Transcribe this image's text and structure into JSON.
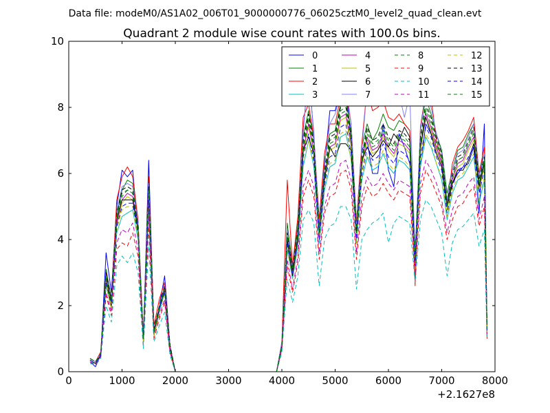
{
  "figure": {
    "suptitle": "Data file: modeM0/AS1A02_006T01_9000000776_06025cztM0_level2_quad_clean.evt",
    "offset_label": "+2.1627e8"
  },
  "chart_data": {
    "type": "line",
    "title": "Quadrant 2 module wise count rates with 100.0s bins.",
    "xlabel": "",
    "ylabel": "",
    "xlim": [
      0,
      8000
    ],
    "ylim": [
      0,
      10
    ],
    "x_offset": "+2.1627e8",
    "xticks": [
      0,
      1000,
      2000,
      3000,
      4000,
      5000,
      6000,
      7000,
      8000
    ],
    "yticks": [
      0,
      2,
      4,
      6,
      8,
      10
    ],
    "grid": false,
    "legend": {
      "placement": "top-right",
      "columns": 4
    },
    "x": [
      400,
      500,
      600,
      700,
      800,
      900,
      1000,
      1100,
      1200,
      1300,
      1400,
      1500,
      1600,
      1700,
      1800,
      1900,
      2000,
      2100,
      3900,
      4000,
      4100,
      4200,
      4300,
      4400,
      4500,
      4600,
      4700,
      4800,
      4900,
      5000,
      5100,
      5200,
      5300,
      5400,
      5500,
      5600,
      5700,
      5800,
      5900,
      6000,
      6100,
      6200,
      6300,
      6400,
      6500,
      6600,
      6700,
      6800,
      6900,
      7000,
      7100,
      7200,
      7300,
      7400,
      7500,
      7600,
      7700,
      7800,
      7850
    ],
    "series": [
      {
        "name": "0",
        "color": "#0000ff",
        "dash": "solid",
        "values": [
          0.3,
          0.15,
          0.5,
          3.6,
          2.4,
          5.0,
          6.1,
          5.9,
          6.1,
          4.2,
          1.0,
          6.4,
          1.2,
          2.0,
          2.9,
          0.8,
          0.0,
          0.0,
          0.0,
          0.8,
          4.0,
          3.0,
          4.0,
          7.3,
          9.1,
          7.2,
          4.2,
          6.2,
          7.9,
          7.9,
          8.5,
          8.6,
          7.0,
          4.4,
          6.7,
          7.0,
          6.0,
          6.0,
          7.5,
          6.1,
          5.6,
          7.2,
          6.8,
          6.3,
          3.8,
          6.2,
          7.5,
          7.2,
          6.8,
          6.3,
          5.2,
          5.7,
          6.0,
          6.2,
          6.3,
          6.8,
          4.8,
          7.5,
          1.3
        ]
      },
      {
        "name": "1",
        "color": "#008000",
        "dash": "solid",
        "values": [
          0.4,
          0.3,
          0.55,
          3.1,
          2.2,
          4.7,
          5.5,
          5.8,
          5.7,
          4.5,
          1.1,
          5.8,
          1.3,
          2.0,
          2.6,
          0.8,
          0.0,
          0.0,
          0.0,
          0.8,
          4.5,
          3.2,
          4.5,
          7.1,
          7.9,
          7.0,
          4.6,
          6.4,
          7.2,
          7.3,
          8.1,
          8.2,
          7.3,
          4.5,
          6.8,
          7.5,
          7.0,
          7.3,
          7.8,
          7.4,
          7.3,
          7.6,
          7.5,
          7.3,
          3.5,
          7.3,
          8.3,
          7.8,
          7.2,
          6.7,
          5.4,
          6.1,
          6.7,
          6.8,
          7.2,
          7.5,
          6.0,
          6.6,
          1.4
        ]
      },
      {
        "name": "2",
        "color": "#ff0000",
        "dash": "solid",
        "values": [
          0.4,
          0.3,
          0.6,
          3.0,
          2.2,
          5.2,
          5.9,
          6.2,
          5.9,
          4.6,
          1.1,
          5.9,
          1.4,
          2.2,
          2.7,
          0.8,
          0.0,
          0.0,
          0.0,
          0.9,
          5.8,
          3.2,
          4.7,
          7.7,
          8.1,
          7.1,
          4.6,
          6.6,
          7.5,
          7.5,
          8.3,
          8.5,
          7.5,
          4.5,
          6.9,
          8.6,
          7.9,
          8.0,
          8.2,
          7.7,
          7.6,
          7.8,
          7.5,
          7.3,
          2.6,
          7.4,
          8.5,
          8.3,
          7.0,
          6.4,
          5.0,
          6.3,
          6.8,
          7.0,
          7.3,
          7.7,
          6.0,
          6.8,
          1.0
        ]
      },
      {
        "name": "3",
        "color": "#00bfbf",
        "dash": "solid",
        "values": [
          0.3,
          0.25,
          0.45,
          2.6,
          1.9,
          4.2,
          4.7,
          4.8,
          4.9,
          4.0,
          0.9,
          5.0,
          1.1,
          1.8,
          2.4,
          0.7,
          0.0,
          0.0,
          0.0,
          0.7,
          3.7,
          2.8,
          3.8,
          6.2,
          7.0,
          6.2,
          3.9,
          5.5,
          6.2,
          6.3,
          7.1,
          7.2,
          6.4,
          3.9,
          5.8,
          6.5,
          6.1,
          6.2,
          6.6,
          6.2,
          6.0,
          6.4,
          6.3,
          6.1,
          3.1,
          6.2,
          7.1,
          6.8,
          6.3,
          5.8,
          4.6,
          5.4,
          5.8,
          5.9,
          6.2,
          6.5,
          5.1,
          5.8,
          1.2
        ]
      },
      {
        "name": "4",
        "color": "#bf00bf",
        "dash": "solid",
        "values": [
          0.35,
          0.25,
          0.5,
          2.8,
          2.0,
          4.5,
          5.2,
          5.4,
          5.3,
          4.3,
          1.0,
          5.4,
          1.2,
          1.9,
          2.5,
          0.7,
          0.0,
          0.0,
          0.0,
          0.8,
          4.1,
          3.0,
          4.2,
          6.7,
          7.5,
          6.7,
          4.2,
          5.9,
          6.8,
          6.9,
          7.7,
          7.8,
          6.9,
          4.2,
          6.3,
          7.1,
          6.7,
          6.8,
          7.2,
          6.8,
          6.6,
          7.0,
          6.9,
          6.7,
          3.3,
          6.8,
          7.8,
          7.4,
          6.8,
          6.3,
          5.0,
          5.8,
          6.3,
          6.4,
          6.8,
          7.1,
          5.6,
          6.3,
          1.3
        ]
      },
      {
        "name": "5",
        "color": "#bfbf00",
        "dash": "solid",
        "values": [
          0.35,
          0.25,
          0.5,
          2.7,
          2.0,
          4.4,
          5.1,
          5.3,
          5.2,
          4.2,
          1.0,
          5.3,
          1.2,
          1.9,
          2.5,
          0.7,
          0.0,
          0.0,
          0.0,
          0.8,
          4.0,
          2.9,
          4.1,
          6.6,
          7.4,
          6.6,
          4.1,
          5.8,
          6.7,
          6.8,
          7.6,
          7.7,
          6.8,
          4.1,
          6.2,
          7.0,
          6.6,
          6.7,
          7.1,
          6.7,
          6.5,
          6.9,
          6.8,
          6.6,
          3.2,
          6.7,
          7.7,
          7.3,
          6.7,
          6.2,
          4.9,
          5.7,
          6.2,
          6.3,
          6.7,
          7.0,
          5.5,
          6.2,
          1.3
        ]
      },
      {
        "name": "6",
        "color": "#000000",
        "dash": "solid",
        "values": [
          0.35,
          0.25,
          0.5,
          2.9,
          2.1,
          4.6,
          5.2,
          5.2,
          5.2,
          4.3,
          1.0,
          5.4,
          1.2,
          1.9,
          2.5,
          0.7,
          0.0,
          0.0,
          0.0,
          0.8,
          4.0,
          2.9,
          4.0,
          6.7,
          7.1,
          6.6,
          4.3,
          5.8,
          6.8,
          6.5,
          6.9,
          6.9,
          6.7,
          4.3,
          6.4,
          6.8,
          6.5,
          6.7,
          7.0,
          6.8,
          7.2,
          7.0,
          7.4,
          7.1,
          3.4,
          6.8,
          7.7,
          7.2,
          6.6,
          6.2,
          5.0,
          5.7,
          6.1,
          6.1,
          6.4,
          6.9,
          5.6,
          6.3,
          1.3
        ]
      },
      {
        "name": "7",
        "color": "#7f7fff",
        "dash": "solid",
        "values": [
          0.4,
          0.3,
          0.55,
          2.9,
          2.2,
          4.8,
          5.6,
          5.7,
          5.6,
          4.5,
          1.1,
          5.7,
          1.3,
          2.0,
          2.6,
          0.8,
          0.0,
          0.0,
          0.0,
          0.9,
          4.3,
          3.1,
          4.3,
          7.2,
          9.2,
          7.1,
          4.4,
          6.3,
          7.5,
          7.8,
          8.4,
          8.7,
          7.5,
          4.4,
          6.7,
          8.6,
          8.5,
          8.2,
          8.2,
          8.3,
          8.3,
          8.4,
          7.7,
          8.4,
          3.6,
          7.3,
          8.5,
          8.0,
          7.2,
          6.6,
          5.2,
          6.1,
          6.6,
          6.7,
          7.1,
          7.5,
          5.9,
          6.6,
          1.4
        ]
      },
      {
        "name": "8",
        "color": "#008000",
        "dash": "dashed",
        "values": [
          0.35,
          0.25,
          0.5,
          2.8,
          2.0,
          4.6,
          5.3,
          5.5,
          5.4,
          4.3,
          1.0,
          5.5,
          1.2,
          1.9,
          2.5,
          0.7,
          0.0,
          0.0,
          0.0,
          0.8,
          4.1,
          3.0,
          4.2,
          6.8,
          7.6,
          6.7,
          4.2,
          5.9,
          6.9,
          7.0,
          7.8,
          7.9,
          7.0,
          4.2,
          6.3,
          7.2,
          6.8,
          6.9,
          7.3,
          6.9,
          6.7,
          7.1,
          7.0,
          6.8,
          3.3,
          6.9,
          7.9,
          7.5,
          6.9,
          6.4,
          5.0,
          5.9,
          6.4,
          6.5,
          6.9,
          7.2,
          5.7,
          6.4,
          1.3
        ]
      },
      {
        "name": "9",
        "color": "#ff0000",
        "dash": "dashed",
        "values": [
          0.3,
          0.2,
          0.45,
          2.3,
          1.7,
          3.7,
          3.9,
          3.8,
          4.2,
          3.5,
          0.8,
          4.4,
          1.0,
          1.6,
          2.1,
          0.6,
          0.0,
          0.0,
          0.0,
          0.7,
          3.2,
          2.4,
          3.3,
          5.3,
          5.8,
          5.3,
          3.4,
          4.8,
          5.3,
          5.4,
          6.0,
          6.1,
          5.5,
          3.4,
          5.0,
          5.6,
          5.3,
          5.4,
          5.7,
          5.4,
          5.2,
          5.5,
          5.4,
          5.3,
          2.8,
          5.4,
          6.1,
          5.8,
          5.4,
          5.0,
          4.0,
          4.6,
          5.0,
          5.1,
          5.4,
          5.6,
          4.4,
          5.0,
          1.1
        ]
      },
      {
        "name": "10",
        "color": "#00bfbf",
        "dash": "dashed",
        "values": [
          0.25,
          0.2,
          0.4,
          2.0,
          1.5,
          3.2,
          3.5,
          3.3,
          3.6,
          3.0,
          0.7,
          3.8,
          0.9,
          1.4,
          1.8,
          0.5,
          0.0,
          0.0,
          0.0,
          0.6,
          2.8,
          2.1,
          2.9,
          4.6,
          4.9,
          4.5,
          2.6,
          4.0,
          4.4,
          4.5,
          5.0,
          5.0,
          4.6,
          2.5,
          4.0,
          4.3,
          4.5,
          4.6,
          4.8,
          3.9,
          4.5,
          4.7,
          4.6,
          4.5,
          2.7,
          4.6,
          5.2,
          5.0,
          4.6,
          4.2,
          2.9,
          3.9,
          4.3,
          4.4,
          4.6,
          4.8,
          3.8,
          4.3,
          1.0
        ]
      },
      {
        "name": "11",
        "color": "#bf00bf",
        "dash": "dashed",
        "values": [
          0.3,
          0.2,
          0.45,
          2.4,
          1.8,
          3.9,
          4.3,
          4.2,
          4.5,
          3.7,
          0.9,
          4.7,
          1.1,
          1.7,
          2.2,
          0.6,
          0.0,
          0.0,
          0.0,
          0.7,
          3.4,
          2.5,
          3.5,
          5.6,
          6.1,
          5.6,
          3.6,
          5.0,
          5.6,
          5.7,
          6.3,
          6.4,
          5.8,
          3.6,
          5.3,
          5.9,
          5.6,
          5.7,
          6.0,
          5.7,
          5.5,
          5.8,
          5.7,
          5.6,
          3.0,
          5.7,
          6.4,
          6.1,
          5.7,
          5.2,
          4.2,
          4.9,
          5.3,
          5.4,
          5.7,
          5.9,
          4.6,
          5.3,
          1.1
        ]
      },
      {
        "name": "12",
        "color": "#bfbf00",
        "dash": "dashed",
        "values": [
          0.35,
          0.25,
          0.5,
          2.6,
          1.9,
          4.3,
          4.9,
          5.0,
          5.0,
          4.1,
          0.9,
          5.1,
          1.1,
          1.8,
          2.4,
          0.7,
          0.0,
          0.0,
          0.0,
          0.8,
          3.8,
          2.8,
          3.9,
          6.3,
          7.0,
          6.3,
          4.0,
          5.6,
          6.3,
          6.4,
          7.2,
          7.3,
          6.4,
          3.9,
          5.9,
          6.6,
          6.2,
          6.3,
          6.7,
          6.3,
          6.1,
          6.5,
          6.4,
          6.2,
          3.1,
          6.3,
          7.2,
          6.9,
          6.3,
          5.9,
          4.7,
          5.5,
          5.9,
          6.0,
          6.3,
          6.6,
          5.2,
          5.9,
          1.2
        ]
      },
      {
        "name": "13",
        "color": "#000000",
        "dash": "dashed",
        "values": [
          0.4,
          0.3,
          0.55,
          3.0,
          2.2,
          4.8,
          5.5,
          5.6,
          5.5,
          4.4,
          1.0,
          5.6,
          1.3,
          2.0,
          2.6,
          0.8,
          0.0,
          0.0,
          0.0,
          0.8,
          4.2,
          3.1,
          4.3,
          7.0,
          7.8,
          6.9,
          4.3,
          6.1,
          7.1,
          7.2,
          8.0,
          8.1,
          7.2,
          4.3,
          6.5,
          7.4,
          7.0,
          7.1,
          7.5,
          7.1,
          6.9,
          7.3,
          7.2,
          7.0,
          3.4,
          7.1,
          8.1,
          7.7,
          7.1,
          6.6,
          5.1,
          6.0,
          6.5,
          6.6,
          7.0,
          7.4,
          5.8,
          6.5,
          1.3
        ]
      },
      {
        "name": "14",
        "color": "#0000ff",
        "dash": "dashed",
        "values": [
          0.35,
          0.25,
          0.5,
          2.7,
          2.0,
          4.4,
          5.0,
          5.1,
          5.1,
          4.2,
          1.0,
          5.2,
          1.2,
          1.9,
          2.4,
          0.7,
          0.0,
          0.0,
          0.0,
          0.8,
          3.9,
          2.9,
          4.0,
          6.5,
          7.2,
          6.4,
          4.0,
          5.7,
          6.5,
          6.6,
          7.4,
          7.5,
          6.6,
          4.0,
          6.0,
          6.8,
          6.4,
          6.5,
          6.9,
          6.5,
          6.3,
          6.7,
          6.6,
          6.4,
          3.2,
          6.5,
          7.4,
          7.1,
          6.5,
          6.1,
          4.8,
          5.6,
          6.1,
          6.2,
          6.5,
          6.8,
          5.4,
          6.1,
          1.2
        ]
      },
      {
        "name": "15",
        "color": "#008000",
        "dash": "dashed",
        "values": [
          0.4,
          0.3,
          0.55,
          2.9,
          2.1,
          4.7,
          5.4,
          5.5,
          5.4,
          4.3,
          1.0,
          5.5,
          1.2,
          2.0,
          2.5,
          0.7,
          0.0,
          0.0,
          0.0,
          0.8,
          4.1,
          3.0,
          4.2,
          6.9,
          7.7,
          6.8,
          4.2,
          6.0,
          7.0,
          7.1,
          7.9,
          8.0,
          7.1,
          4.2,
          6.4,
          7.3,
          6.9,
          7.0,
          7.4,
          7.0,
          6.8,
          7.2,
          7.1,
          6.9,
          3.3,
          7.0,
          8.0,
          7.6,
          7.0,
          6.5,
          5.0,
          5.9,
          6.4,
          6.5,
          6.9,
          7.3,
          5.7,
          6.4,
          1.3
        ]
      }
    ]
  }
}
